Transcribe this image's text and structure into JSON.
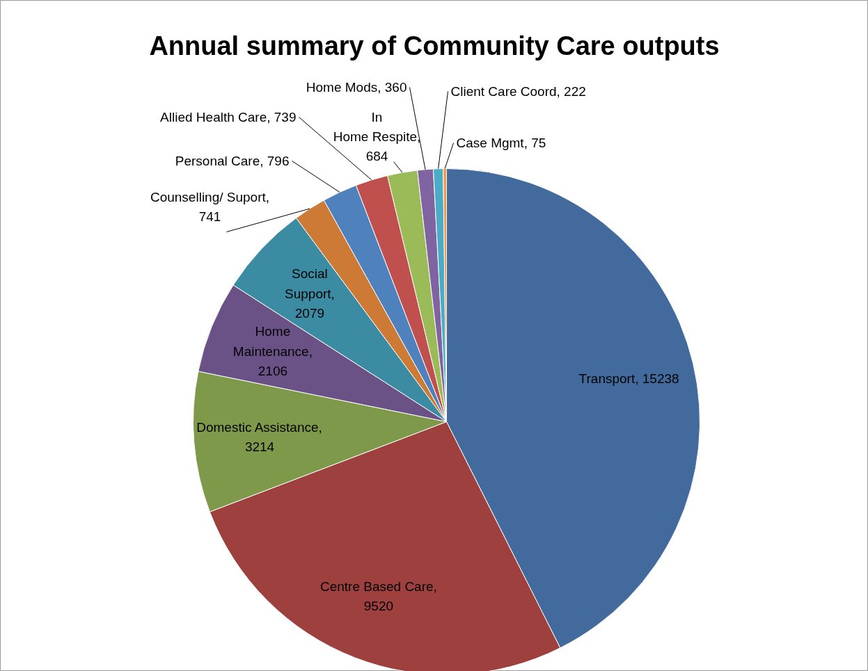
{
  "chart_data": {
    "type": "pie",
    "title": "Annual summary of Community Care outputs",
    "categories": [
      "Transport",
      "Centre Based Care",
      "Domestic Assistance",
      "Home Maintenance",
      "Social Support",
      "Counselling/ Suport",
      "Personal Care",
      "Allied Health Care",
      "In Home Respite",
      "Home Mods",
      "Client Care Coord",
      "Case Mgmt"
    ],
    "values": [
      15238,
      9520,
      3214,
      2106,
      2079,
      741,
      796,
      739,
      684,
      360,
      222,
      75
    ],
    "colors": [
      "#426a9c",
      "#9e413e",
      "#7f994a",
      "#6a5287",
      "#3b8ba3",
      "#cc7a36",
      "#4f81bd",
      "#c0504d",
      "#9bbb59",
      "#8064a2",
      "#4bacc6",
      "#f79646"
    ],
    "value_labels": [
      ", 15238",
      ", 9520",
      ", 3214",
      ", 2106",
      ", 2079",
      ", 741",
      ", 796",
      ", 739",
      ", 684",
      ", 360",
      ", 222",
      ", 75"
    ]
  }
}
